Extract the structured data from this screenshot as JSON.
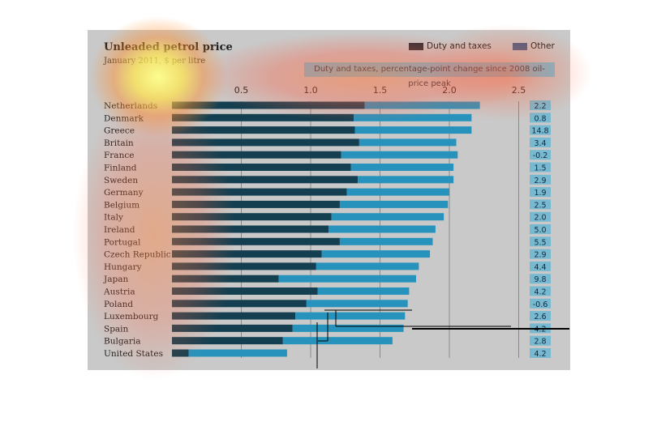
{
  "colors": {
    "duty": "#143f50",
    "other": "#2793bd",
    "duty_legend": "#2a2f36",
    "other_legend": "#3e5f8c",
    "panel": "#c9c9c9",
    "badge": "#78b9d2"
  },
  "header": {
    "title": "Unleaded petrol price",
    "subtitle": "January 2011, $ per litre",
    "change_banner": "Duty and taxes, percentage-point change since 2008 oil-price peak"
  },
  "legend": [
    {
      "name": "Duty and taxes",
      "color": "#2a2f36"
    },
    {
      "name": "Other",
      "color": "#3e5f8c"
    }
  ],
  "chart_data": {
    "type": "bar",
    "orientation": "horizontal",
    "stacked": true,
    "title": "Unleaded petrol price",
    "subtitle": "January 2011, $ per litre",
    "xlim": [
      0,
      2.5
    ],
    "xticks": [
      "0.5",
      "1.0",
      "1.5",
      "2.0",
      "2.5"
    ],
    "grid": true,
    "legend_position": "top-right",
    "categories": [
      "Netherlands",
      "Denmark",
      "Greece",
      "Britain",
      "France",
      "Finland",
      "Sweden",
      "Germany",
      "Belgium",
      "Italy",
      "Ireland",
      "Portugal",
      "Czech Republic",
      "Hungary",
      "Japan",
      "Austria",
      "Poland",
      "Luxembourg",
      "Spain",
      "Bulgaria",
      "United States"
    ],
    "series": [
      {
        "name": "Duty and taxes",
        "values": [
          1.39,
          1.31,
          1.32,
          1.35,
          1.22,
          1.29,
          1.34,
          1.26,
          1.21,
          1.15,
          1.13,
          1.21,
          1.08,
          1.04,
          0.77,
          1.05,
          0.97,
          0.89,
          0.87,
          0.8,
          0.12
        ]
      },
      {
        "name": "Other",
        "values": [
          0.83,
          0.85,
          0.84,
          0.7,
          0.84,
          0.74,
          0.69,
          0.74,
          0.78,
          0.81,
          0.77,
          0.67,
          0.78,
          0.74,
          0.99,
          0.66,
          0.73,
          0.79,
          0.8,
          0.79,
          0.71
        ]
      }
    ],
    "annotation_header": "Duty and taxes, percentage-point change since 2008 oil-price peak",
    "annotations": [
      "2.2",
      "0.8",
      "14.8",
      "3.4",
      "-0.2",
      "1.5",
      "2.9",
      "1.9",
      "2.5",
      "2.0",
      "5.0",
      "5.5",
      "2.9",
      "4.4",
      "9.8",
      "4.2",
      "-0.6",
      "2.6",
      "4.2",
      "2.8",
      "4.2"
    ]
  }
}
